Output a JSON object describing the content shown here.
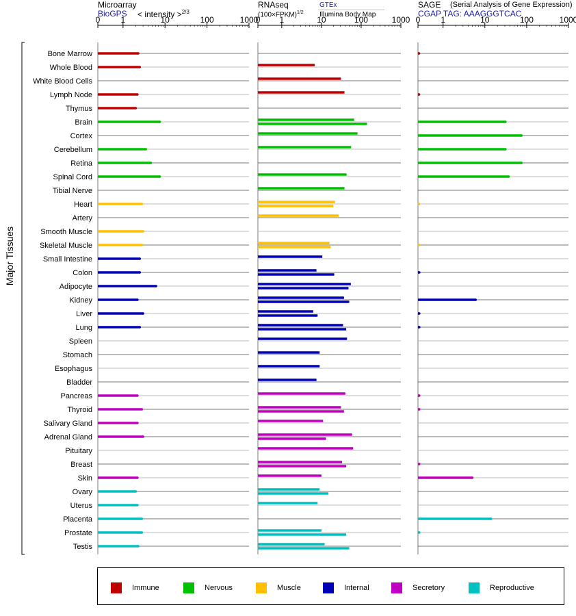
{
  "headers": {
    "microarray": {
      "title": "Microarray",
      "source": "BioGPS",
      "scale": "< intensity >",
      "scale_exp": "2/3"
    },
    "rnaseq": {
      "title": "RNAseq",
      "scale": "(100×FPKM)",
      "scale_exp": "1/2",
      "source1": "GTEx",
      "source2": "Illumina Body Map"
    },
    "sage": {
      "title": "SAGE",
      "subtitle": "(Serial Analysis of Gene Expression)",
      "tag": "CGAP TAG: AAAGGGTCAC"
    }
  },
  "y_group_label": "Major Tissues",
  "colors": {
    "Immune": "#c00000",
    "Nervous": "#00c000",
    "Muscle": "#ffc000",
    "Internal": "#0000b4",
    "Secretory": "#c000c0",
    "Reproductive": "#00c0c0"
  },
  "legend": [
    {
      "label": "Immune",
      "group": "Immune"
    },
    {
      "label": "Nervous",
      "group": "Nervous"
    },
    {
      "label": "Muscle",
      "group": "Muscle"
    },
    {
      "label": "Internal",
      "group": "Internal"
    },
    {
      "label": "Secretory",
      "group": "Secretory"
    },
    {
      "label": "Reproductive",
      "group": "Reproductive"
    }
  ],
  "chart_data": {
    "type": "bar",
    "orientation": "horizontal",
    "axis_ticks": [
      "0",
      "1",
      "10",
      "100",
      "1000"
    ],
    "tick_values": [
      0,
      1,
      10,
      100,
      1000
    ],
    "axis_range": [
      0,
      1000
    ],
    "grid": true,
    "categories": [
      "Bone Marrow",
      "Whole Blood",
      "White Blood Cells",
      "Lymph Node",
      "Thymus",
      "Brain",
      "Cortex",
      "Cerebellum",
      "Retina",
      "Spinal Cord",
      "Tibial Nerve",
      "Heart",
      "Artery",
      "Smooth Muscle",
      "Skeletal Muscle",
      "Small Intestine",
      "Colon",
      "Adipocyte",
      "Kidney",
      "Liver",
      "Lung",
      "Spleen",
      "Stomach",
      "Esophagus",
      "Bladder",
      "Pancreas",
      "Thyroid",
      "Salivary Gland",
      "Adrenal Gland",
      "Pituitary",
      "Breast",
      "Skin",
      "Ovary",
      "Uterus",
      "Placenta",
      "Prostate",
      "Testis"
    ],
    "groups": [
      "Immune",
      "Immune",
      "Immune",
      "Immune",
      "Immune",
      "Nervous",
      "Nervous",
      "Nervous",
      "Nervous",
      "Nervous",
      "Nervous",
      "Muscle",
      "Muscle",
      "Muscle",
      "Muscle",
      "Internal",
      "Internal",
      "Internal",
      "Internal",
      "Internal",
      "Internal",
      "Internal",
      "Internal",
      "Internal",
      "Internal",
      "Secretory",
      "Secretory",
      "Secretory",
      "Secretory",
      "Secretory",
      "Secretory",
      "Secretory",
      "Reproductive",
      "Reproductive",
      "Reproductive",
      "Reproductive",
      "Reproductive"
    ],
    "series": [
      {
        "name": "Microarray",
        "values": [
          2.3,
          2.5,
          null,
          2.2,
          2.0,
          7.5,
          null,
          3.5,
          4.6,
          7.5,
          null,
          2.8,
          null,
          3.0,
          2.8,
          2.5,
          2.5,
          6.1,
          2.2,
          3.0,
          2.5,
          null,
          null,
          null,
          null,
          2.2,
          2.8,
          2.2,
          3.0,
          null,
          null,
          2.2,
          2.0,
          2.2,
          2.8,
          2.8,
          2.3
        ]
      },
      {
        "name": "RNAseq GTEx",
        "values": [
          null,
          6.8,
          31.0,
          38.0,
          null,
          67.0,
          81.0,
          56.0,
          null,
          43.0,
          38.0,
          22.0,
          27.0,
          null,
          16.0,
          10.5,
          7.5,
          55.0,
          37.0,
          6.2,
          35.0,
          44.0,
          9.0,
          9.0,
          7.5,
          40.0,
          31.0,
          11.0,
          59.0,
          63.0,
          33.0,
          10.0,
          9.0,
          8.0,
          null,
          10.0,
          12.0
        ]
      },
      {
        "name": "RNAseq Illumina Body Map",
        "values": [
          null,
          null,
          null,
          null,
          null,
          140.0,
          null,
          null,
          null,
          null,
          null,
          20.0,
          null,
          null,
          17.0,
          null,
          21.0,
          48.0,
          50.0,
          8.0,
          42.0,
          null,
          null,
          null,
          null,
          null,
          37.0,
          null,
          13.0,
          null,
          42.0,
          null,
          15.0,
          null,
          null,
          42.0,
          50.0
        ]
      },
      {
        "name": "SAGE",
        "values": [
          0.02,
          null,
          null,
          0.02,
          null,
          31.0,
          75.0,
          31.0,
          75.0,
          37.0,
          null,
          0.02,
          null,
          null,
          0.02,
          null,
          0.05,
          null,
          6.0,
          0.05,
          0.05,
          null,
          null,
          null,
          null,
          0.05,
          0.05,
          null,
          null,
          null,
          0.05,
          5.0,
          null,
          null,
          14.0,
          0.05,
          null
        ]
      }
    ]
  }
}
